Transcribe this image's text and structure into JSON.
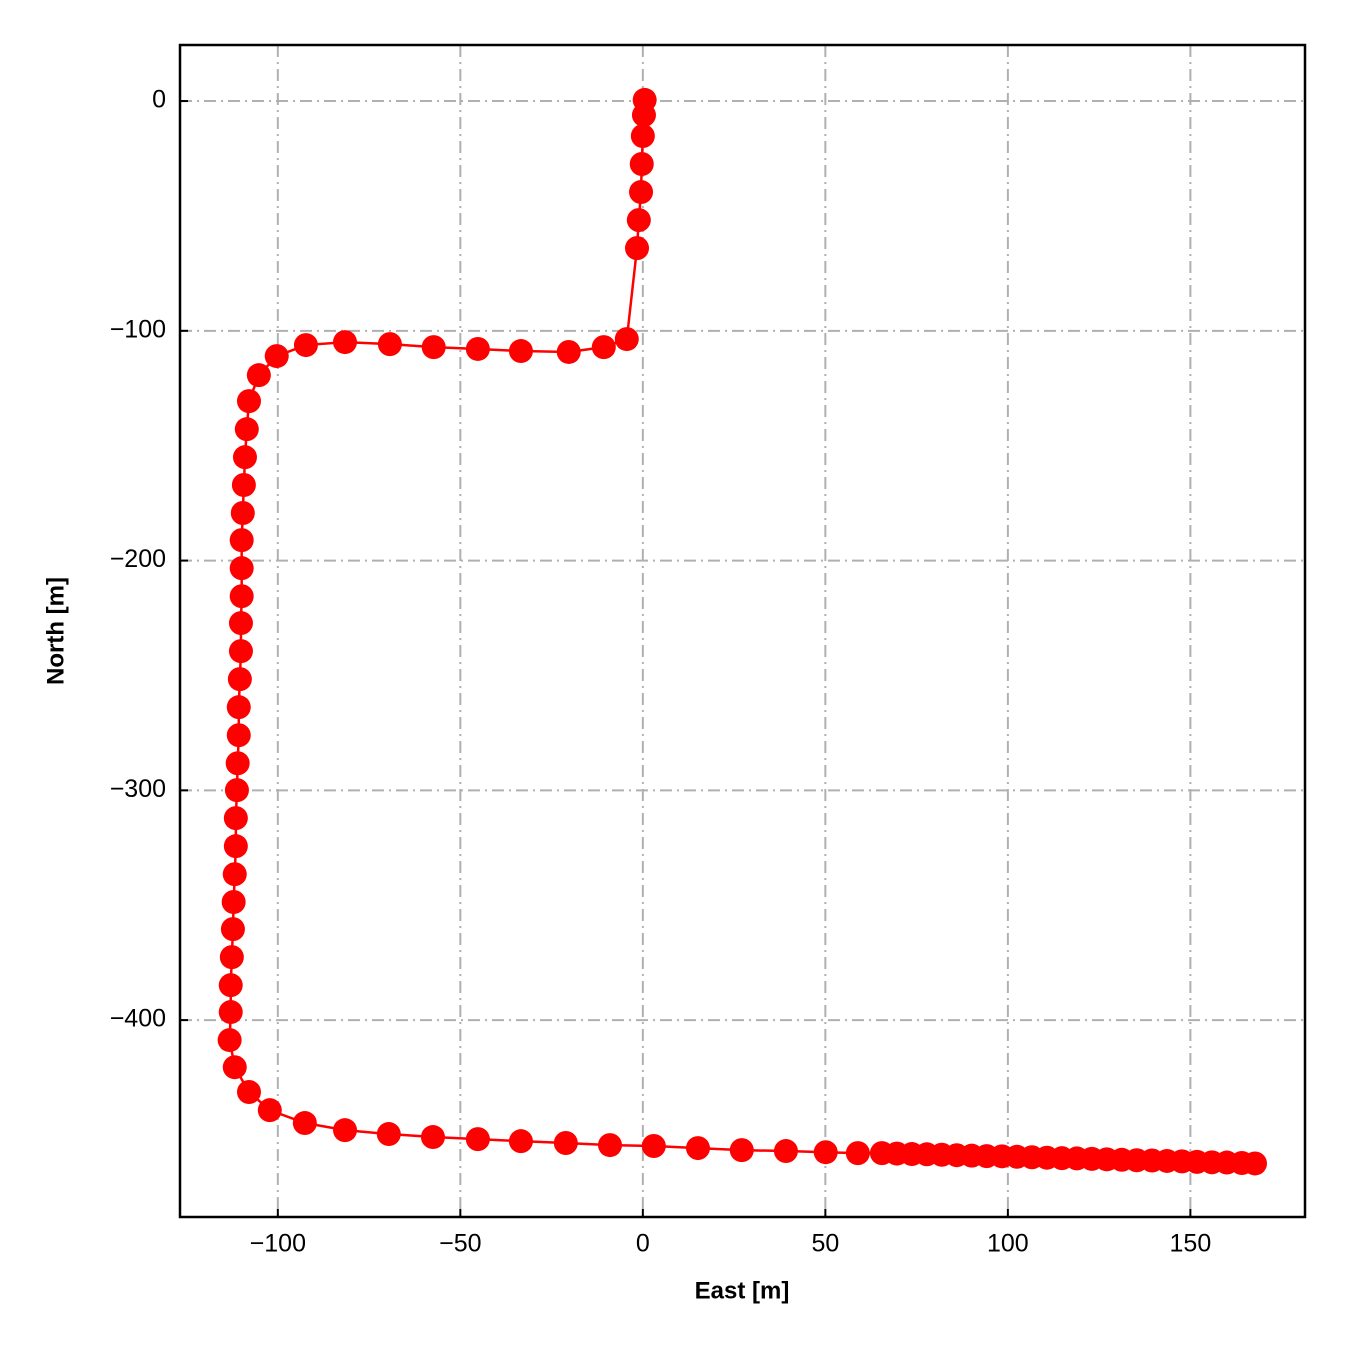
{
  "chart_data": {
    "type": "line",
    "xlabel": "East [m]",
    "ylabel": "North [m]",
    "x": [
      0.5,
      0.3,
      0,
      -0.3,
      -0.5,
      -1.1,
      -1.6,
      -4.4,
      -10.7,
      -20.3,
      -33.4,
      -45.2,
      -57.3,
      -69.3,
      -81.6,
      -92.3,
      -100.3,
      -105.2,
      -107.9,
      -108.5,
      -109,
      -109.3,
      -109.6,
      -109.9,
      -109.9,
      -109.9,
      -110.1,
      -110.1,
      -110.4,
      -110.7,
      -110.7,
      -111,
      -111.2,
      -111.5,
      -111.5,
      -111.8,
      -112.1,
      -112.3,
      -112.6,
      -112.9,
      -112.9,
      -113.2,
      -111.8,
      -107.9,
      -102.2,
      -92.6,
      -81.6,
      -69.6,
      -57.5,
      -45.2,
      -33.4,
      -21.1,
      -9,
      3,
      15.1,
      27.1,
      39.2,
      50.1,
      58.9,
      65.5,
      69.6,
      73.7,
      77.8,
      81.9,
      86.0,
      90.1,
      94.2,
      98.4,
      102.5,
      106.6,
      110.7,
      114.8,
      118.9,
      123.0,
      127.1,
      131.2,
      135.3,
      139.5,
      143.6,
      147.7,
      151.8,
      155.9,
      160.0,
      164.1,
      167.7
    ],
    "series": [
      {
        "color": "#ff0000",
        "values": [
          0.5,
          -6.1,
          -15.2,
          -27.4,
          -39.6,
          -51.8,
          -64,
          -103.6,
          -107.1,
          -109.2,
          -108.8,
          -107.9,
          -107.1,
          -105.8,
          -104.9,
          -106.2,
          -111,
          -119.3,
          -130.6,
          -142.8,
          -155,
          -167.1,
          -179.3,
          -191.1,
          -203.3,
          -215.5,
          -227.2,
          -239.4,
          -251.6,
          -263.8,
          -276,
          -288.2,
          -299.9,
          -312.1,
          -324.3,
          -336.5,
          -348.6,
          -360.4,
          -372.6,
          -384.8,
          -396.5,
          -408.7,
          -420.5,
          -431.3,
          -439.2,
          -444.8,
          -447.9,
          -449.6,
          -450.9,
          -451.8,
          -452.7,
          -453.5,
          -454.4,
          -454.8,
          -455.7,
          -456.6,
          -457,
          -457.5,
          -457.9,
          -457.9,
          -458.1,
          -458.3,
          -458.4,
          -458.6,
          -458.8,
          -459.0,
          -459.2,
          -459.3,
          -459.5,
          -459.7,
          -459.9,
          -460.1,
          -460.2,
          -460.4,
          -460.6,
          -460.8,
          -461.0,
          -461.1,
          -461.3,
          -461.5,
          -461.7,
          -461.9,
          -462.0,
          -462.2,
          -462.4
        ]
      }
    ],
    "markers": true,
    "xlim": [
      -126.8,
      181.4
    ],
    "ylim": [
      -485.7,
      24.4
    ],
    "xticks": [
      {
        "value": -100,
        "label": "−100"
      },
      {
        "value": -50,
        "label": "−50"
      },
      0,
      50,
      100,
      150
    ],
    "yticks": [
      0,
      {
        "value": -100,
        "label": "−100"
      },
      {
        "value": -200,
        "label": "−200"
      },
      {
        "value": -300,
        "label": "−300"
      },
      {
        "value": -400,
        "label": "−400"
      }
    ],
    "grid": true
  }
}
